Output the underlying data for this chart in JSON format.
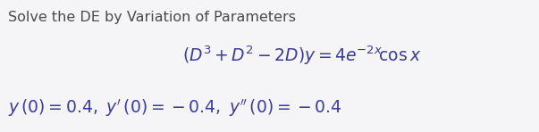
{
  "background_color": "#f5f5f8",
  "title_text": "Solve the DE by Variation of Parameters",
  "title_color": "#4a4a4a",
  "title_fontsize": 11.5,
  "eq1_text": "$\\left(D^3 + D^2 - 2D\\right) y = 4e^{-2x}\\!\\cos x$",
  "eq1_fontsize": 13.5,
  "eq1_color": "#3a3a9a",
  "eq2_text": "$y\\,(0) = 0.4,\\ y'\\,(0) = -0.4,\\ y''\\,(0) = -0.4$",
  "eq2_fontsize": 13.5,
  "eq2_color": "#3a3a9a",
  "fig_width": 6.03,
  "fig_height": 1.48,
  "fig_dpi": 100
}
